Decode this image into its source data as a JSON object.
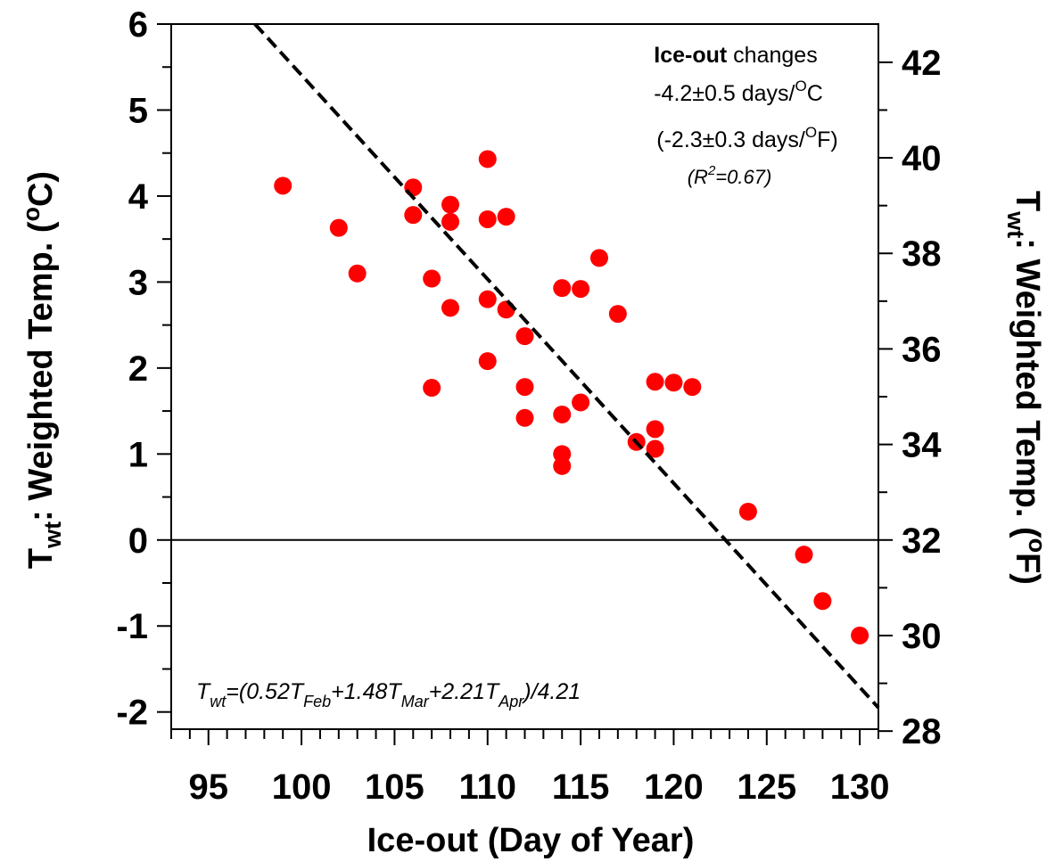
{
  "chart_data": {
    "type": "scatter",
    "xlabel": "Ice-out (Day of Year)",
    "ylabel_left": {
      "base": "T",
      "sub": "wt",
      "rest": ": Weighted Temp. (",
      "sup": "o",
      "end": "C)"
    },
    "ylabel_right": {
      "base": "T",
      "sub": "wt",
      "rest": ": Weighted Temp. (",
      "sup": "o",
      "end": "F)"
    },
    "xlim": [
      93,
      131
    ],
    "ylim": [
      -2.2,
      6
    ],
    "x_ticks": [
      95,
      100,
      105,
      110,
      115,
      120,
      125,
      130
    ],
    "y_ticks": [
      -2,
      -1,
      0,
      1,
      2,
      3,
      4,
      5,
      6
    ],
    "y2_ticks": [
      28,
      30,
      32,
      34,
      36,
      38,
      40,
      42
    ],
    "zero_line": 0,
    "points": [
      {
        "x": 99,
        "y": 4.12
      },
      {
        "x": 102,
        "y": 3.63
      },
      {
        "x": 103,
        "y": 3.1
      },
      {
        "x": 106,
        "y": 4.1
      },
      {
        "x": 106,
        "y": 3.78
      },
      {
        "x": 107,
        "y": 3.04
      },
      {
        "x": 107,
        "y": 1.77
      },
      {
        "x": 108,
        "y": 3.9
      },
      {
        "x": 108,
        "y": 3.7
      },
      {
        "x": 108,
        "y": 2.7
      },
      {
        "x": 110,
        "y": 4.43
      },
      {
        "x": 110,
        "y": 3.73
      },
      {
        "x": 110,
        "y": 2.8
      },
      {
        "x": 110,
        "y": 2.08
      },
      {
        "x": 111,
        "y": 3.76
      },
      {
        "x": 111,
        "y": 2.68
      },
      {
        "x": 112,
        "y": 2.37
      },
      {
        "x": 112,
        "y": 1.78
      },
      {
        "x": 112,
        "y": 1.42
      },
      {
        "x": 114,
        "y": 2.93
      },
      {
        "x": 114,
        "y": 1.46
      },
      {
        "x": 114,
        "y": 1.0
      },
      {
        "x": 114,
        "y": 0.86
      },
      {
        "x": 115,
        "y": 2.92
      },
      {
        "x": 115,
        "y": 1.6
      },
      {
        "x": 116,
        "y": 3.28
      },
      {
        "x": 117,
        "y": 2.63
      },
      {
        "x": 118,
        "y": 1.14
      },
      {
        "x": 119,
        "y": 1.84
      },
      {
        "x": 119,
        "y": 1.29
      },
      {
        "x": 119,
        "y": 1.06
      },
      {
        "x": 120,
        "y": 1.83
      },
      {
        "x": 121,
        "y": 1.78
      },
      {
        "x": 124,
        "y": 0.33
      },
      {
        "x": 127,
        "y": -0.17
      },
      {
        "x": 128,
        "y": -0.71
      },
      {
        "x": 130,
        "y": -1.11
      }
    ],
    "fit_line": {
      "x": [
        97.5,
        131
      ],
      "y": [
        6.0,
        -1.95
      ]
    },
    "annotation": {
      "bold": "Ice-out",
      "rest": " changes",
      "line2_pre": "-4.2±0.5 days/",
      "line2_sup": "O",
      "line2_post": "C",
      "line3_pre": "(-2.3±0.3 days/",
      "line3_sup": "O",
      "line3_post": "F)",
      "r2_pre": "(R",
      "r2_sup": "2",
      "r2_post": "=0.67)"
    },
    "formula": {
      "t1": "T",
      "s1": "wt",
      "t2": "=(0.52T",
      "s2": "Feb",
      "t3": "+1.48T",
      "s3": "Mar",
      "t4": "+2.21T",
      "s4": "Apr",
      "t5": ")/4.21"
    },
    "point_color": "#ff0000",
    "grid": false
  }
}
